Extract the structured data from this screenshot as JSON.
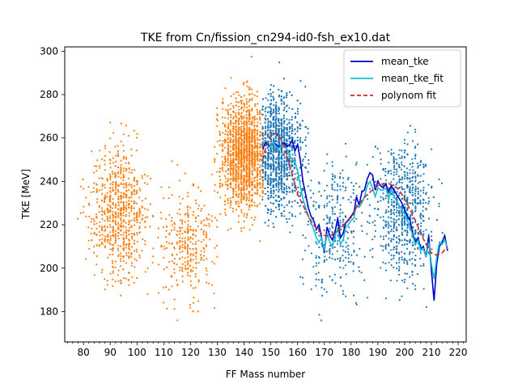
{
  "chart_data": {
    "type": "scatter",
    "title": "TKE from  Cn/fission_cn294-id0-fsh_ex10.dat",
    "xlabel": "FF Mass number",
    "ylabel": "TKE [MeV]",
    "xlim": [
      73,
      223
    ],
    "ylim": [
      166,
      302
    ],
    "x_ticks": [
      80,
      90,
      100,
      110,
      120,
      130,
      140,
      150,
      160,
      170,
      180,
      190,
      200,
      210,
      220
    ],
    "y_ticks": [
      180,
      200,
      220,
      240,
      260,
      280,
      300
    ],
    "legend_position": "top-right",
    "colors": {
      "light_fragments": "#ff7f0e",
      "heavy_fragments": "#1f77b4",
      "mean_tke": "#0000cc",
      "mean_tke_fit": "#17becf",
      "polynom_fit": "#d62728"
    },
    "series": [
      {
        "name": "mean_tke",
        "style": "solid",
        "x": [
          147,
          148,
          149,
          150,
          151,
          152,
          153,
          154,
          155,
          156,
          157,
          158,
          159,
          160,
          161,
          162,
          163,
          164,
          165,
          166,
          167,
          168,
          169,
          170,
          171,
          172,
          173,
          174,
          175,
          176,
          177,
          178,
          179,
          180,
          181,
          182,
          183,
          184,
          185,
          186,
          187,
          188,
          189,
          190,
          191,
          192,
          193,
          194,
          195,
          196,
          197,
          198,
          199,
          200,
          201,
          202,
          203,
          204,
          205,
          206,
          207,
          208,
          209,
          210,
          211,
          212,
          213,
          214,
          215,
          216
        ],
        "y": [
          255,
          258,
          257,
          256,
          258,
          257,
          256,
          257,
          258,
          256,
          257,
          259,
          254,
          257,
          250,
          240,
          234,
          228,
          224,
          222,
          218,
          220,
          214,
          207,
          219,
          215,
          213,
          217,
          223,
          214,
          216,
          221,
          222,
          224,
          225,
          233,
          229,
          235,
          236,
          241,
          244,
          243,
          236,
          240,
          238,
          237,
          239,
          235,
          238,
          236,
          234,
          232,
          230,
          227,
          224,
          222,
          216,
          212,
          214,
          209,
          210,
          205,
          215,
          199,
          185,
          202,
          210,
          212,
          215,
          208
        ]
      },
      {
        "name": "mean_tke_fit",
        "style": "solid",
        "x": [
          147,
          148,
          149,
          150,
          151,
          152,
          153,
          154,
          155,
          156,
          157,
          158,
          159,
          160,
          161,
          162,
          163,
          164,
          165,
          166,
          167,
          168,
          169,
          170,
          171,
          172,
          173,
          174,
          175,
          176,
          177,
          178,
          179,
          180,
          181,
          182,
          183,
          184,
          185,
          186,
          187,
          188,
          189,
          190,
          191,
          192,
          193,
          194,
          195,
          196,
          197,
          198,
          199,
          200,
          201,
          202,
          203,
          204,
          205,
          206,
          207,
          208,
          209,
          210,
          211,
          212,
          213,
          214,
          215,
          216
        ],
        "y": [
          258,
          259,
          258,
          256,
          258,
          256,
          255,
          257,
          256,
          255,
          252,
          250,
          249,
          245,
          238,
          232,
          228,
          224,
          221,
          218,
          214,
          212,
          214,
          208,
          216,
          212,
          210,
          215,
          218,
          211,
          213,
          219,
          220,
          222,
          223,
          229,
          228,
          230,
          233,
          238,
          240,
          237,
          233,
          237,
          236,
          236,
          237,
          232,
          236,
          233,
          231,
          229,
          227,
          225,
          222,
          219,
          215,
          211,
          213,
          208,
          209,
          205,
          212,
          202,
          195,
          205,
          212,
          211,
          213,
          209
        ]
      },
      {
        "name": "polynom fit",
        "style": "dashed",
        "x": [
          147,
          148,
          149,
          150,
          151,
          152,
          153,
          154,
          155,
          156,
          157,
          158,
          159,
          160,
          162,
          164,
          166,
          168,
          170,
          172,
          174,
          176,
          178,
          180,
          182,
          184,
          186,
          188,
          190,
          192,
          194,
          196,
          198,
          200,
          202,
          204,
          206,
          208,
          210,
          212,
          214,
          216
        ],
        "y": [
          250,
          255,
          259,
          261,
          262,
          262,
          261,
          259,
          256,
          252,
          248,
          243,
          239,
          234,
          229,
          224,
          220,
          217,
          215,
          215,
          216,
          218,
          221,
          224,
          228,
          231,
          234,
          236,
          238,
          239,
          239,
          238,
          236,
          232,
          227,
          222,
          216,
          211,
          207,
          206,
          207,
          210
        ]
      }
    ],
    "scatter_series": [
      {
        "group": "light_fragments",
        "color_key": "light_fragments",
        "clusters": [
          {
            "x_range": [
              77,
              112
            ],
            "y_mean": 226,
            "y_sd": 15,
            "count": 720,
            "center_x": 93,
            "sd_x": 5
          },
          {
            "x_range": [
              108,
              130
            ],
            "y_mean": 212,
            "y_sd": 14,
            "count": 320,
            "center_x": 119,
            "sd_x": 5
          },
          {
            "x_range": [
              128,
              147
            ],
            "y_mean": 253,
            "y_sd": 13,
            "count": 1500,
            "center_x": 140,
            "sd_x": 4
          }
        ]
      },
      {
        "group": "heavy_fragments",
        "color_key": "heavy_fragments",
        "clusters": [
          {
            "x_range": [
              147,
              164
            ],
            "y_mean": 253,
            "y_sd": 13,
            "count": 1500,
            "center_x": 153,
            "sd_x": 4
          },
          {
            "x_range": [
              160,
              188
            ],
            "y_mean": 218,
            "y_sd": 16,
            "count": 330,
            "center_x": 174,
            "sd_x": 6
          },
          {
            "x_range": [
              182,
              217
            ],
            "y_mean": 227,
            "y_sd": 15,
            "count": 720,
            "center_x": 200,
            "sd_x": 5
          }
        ]
      }
    ]
  }
}
